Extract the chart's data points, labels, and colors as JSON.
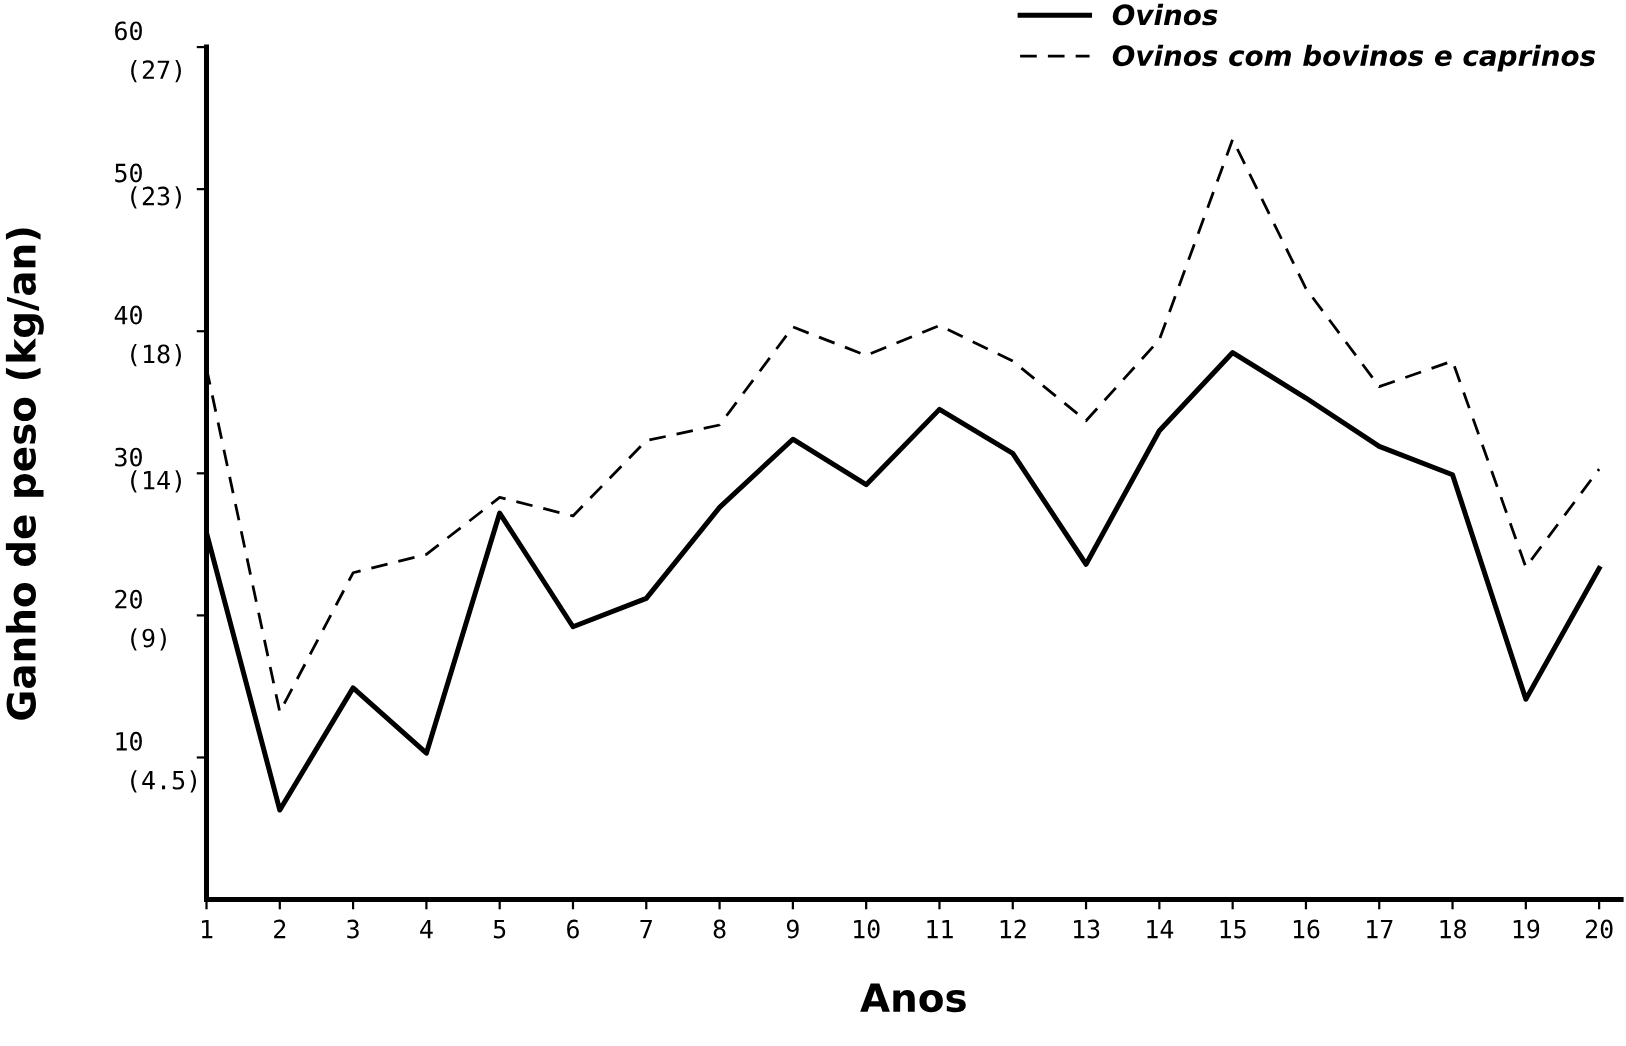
{
  "chart_data": {
    "type": "line",
    "xlabel": "Anos",
    "ylabel": "Ganho de peso (kg/an)",
    "categories": [
      "1",
      "2",
      "3",
      "4",
      "5",
      "6",
      "7",
      "8",
      "9",
      "10",
      "11",
      "12",
      "13",
      "14",
      "15",
      "16",
      "17",
      "18",
      "19",
      "20"
    ],
    "series": [
      {
        "name": "Ovinos",
        "color": "#000000",
        "line_style": "solid",
        "values": [
          25.8,
          6.3,
          14.9,
          10.3,
          27.2,
          19.2,
          21.2,
          27.6,
          32.4,
          29.2,
          34.5,
          31.4,
          23.6,
          33.0,
          38.5,
          35.3,
          31.9,
          29.9,
          14.1,
          23.3
        ]
      },
      {
        "name": "Ovinos com bovinos e caprinos",
        "color": "#000000",
        "line_style": "dashed",
        "values": [
          37.4,
          13.2,
          23.0,
          24.3,
          28.3,
          27.0,
          32.3,
          33.4,
          40.3,
          38.3,
          40.4,
          37.9,
          33.7,
          39.4,
          53.5,
          43.0,
          36.1,
          37.9,
          23.4,
          30.3
        ]
      }
    ],
    "ylim": [
      0,
      60
    ],
    "yticks": [
      10,
      20,
      30,
      40,
      50,
      60
    ],
    "y2lim": [
      0,
      27
    ],
    "y2ticks": [
      {
        "value": 4.5,
        "label": "(4.5)"
      },
      {
        "value": 9,
        "label": "(9)"
      },
      {
        "value": 14,
        "label": "(14)"
      },
      {
        "value": 18,
        "label": "(18)"
      },
      {
        "value": 23,
        "label": "(23)"
      },
      {
        "value": 27,
        "label": "(27)"
      }
    ],
    "grid": false,
    "legend": "top right",
    "marker": "none"
  }
}
